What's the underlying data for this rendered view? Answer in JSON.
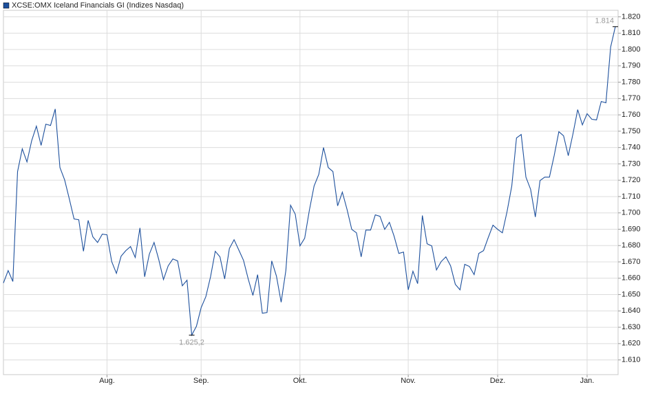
{
  "chart_data": {
    "type": "line",
    "series": [
      {
        "name": "XCSE:OMX Iceland Financials GI (Indizes Nasdaq)",
        "color": "#1c4f9c",
        "values": [
          1657.1,
          1664.7,
          1658.0,
          1725.3,
          1739.2,
          1731.2,
          1744.2,
          1753.1,
          1741.3,
          1754.3,
          1753.5,
          1763.6,
          1727.8,
          1720.2,
          1708.5,
          1696.3,
          1695.8,
          1676.5,
          1695.4,
          1685.3,
          1681.9,
          1687.0,
          1686.6,
          1670.2,
          1663.0,
          1673.5,
          1676.9,
          1679.4,
          1672.7,
          1690.8,
          1660.9,
          1674.8,
          1681.9,
          1671.4,
          1659.2,
          1667.6,
          1671.8,
          1670.6,
          1655.4,
          1658.8,
          1625.2,
          1630.6,
          1642.0,
          1648.7,
          1660.9,
          1676.5,
          1673.1,
          1659.6,
          1678.2,
          1683.6,
          1677.3,
          1671.0,
          1659.6,
          1649.5,
          1662.2,
          1638.6,
          1639.0,
          1670.6,
          1661.3,
          1645.3,
          1664.7,
          1704.7,
          1699.2,
          1679.8,
          1684.5,
          1701.7,
          1716.5,
          1723.6,
          1740.0,
          1727.8,
          1725.3,
          1704.3,
          1712.7,
          1702.1,
          1689.9,
          1687.8,
          1673.1,
          1689.5,
          1689.5,
          1698.8,
          1697.9,
          1689.9,
          1694.2,
          1685.7,
          1675.2,
          1676.0,
          1652.9,
          1664.3,
          1656.7,
          1698.4,
          1681.1,
          1679.8,
          1665.1,
          1670.2,
          1673.1,
          1667.6,
          1656.3,
          1652.9,
          1668.5,
          1667.2,
          1662.2,
          1675.2,
          1676.9,
          1684.9,
          1692.5,
          1689.9,
          1687.8,
          1700.9,
          1716.5,
          1745.9,
          1748.0,
          1721.9,
          1714.4,
          1697.5,
          1719.8,
          1721.9,
          1721.9,
          1735.0,
          1749.7,
          1747.2,
          1735.0,
          1748.4,
          1763.2,
          1753.9,
          1760.7,
          1757.3,
          1756.9,
          1768.2,
          1767.4,
          1801.5,
          1814.0
        ]
      }
    ],
    "categories": [
      null,
      null,
      null,
      null,
      null,
      null,
      null,
      null,
      null,
      null,
      null,
      null,
      null,
      null,
      null,
      null,
      null,
      null,
      null,
      null,
      null,
      null,
      "Aug.",
      null,
      null,
      null,
      null,
      null,
      null,
      null,
      null,
      null,
      null,
      null,
      null,
      null,
      null,
      null,
      null,
      null,
      null,
      null,
      "Sep.",
      null,
      null,
      null,
      null,
      null,
      null,
      null,
      null,
      null,
      null,
      null,
      null,
      null,
      null,
      null,
      null,
      null,
      null,
      null,
      null,
      "Okt.",
      null,
      null,
      null,
      null,
      null,
      null,
      null,
      null,
      null,
      null,
      null,
      null,
      null,
      null,
      null,
      null,
      null,
      null,
      null,
      null,
      null,
      null,
      "Nov.",
      null,
      null,
      null,
      null,
      null,
      null,
      null,
      null,
      null,
      null,
      null,
      null,
      null,
      null,
      null,
      null,
      null,
      null,
      "Dez.",
      null,
      null,
      null,
      null,
      null,
      null,
      null,
      null,
      null,
      null,
      null,
      null,
      null,
      null,
      null,
      null,
      null,
      null,
      "Jan.",
      null,
      null,
      null,
      null,
      null,
      null
    ],
    "ylim": [
      1601,
      1824
    ],
    "yticks": [
      {
        "value": 1610,
        "label": "1.610"
      },
      {
        "value": 1620,
        "label": "1.620"
      },
      {
        "value": 1630,
        "label": "1.630"
      },
      {
        "value": 1640,
        "label": "1.640"
      },
      {
        "value": 1650,
        "label": "1.650"
      },
      {
        "value": 1660,
        "label": "1.660"
      },
      {
        "value": 1670,
        "label": "1.670"
      },
      {
        "value": 1680,
        "label": "1.680"
      },
      {
        "value": 1690,
        "label": "1.690"
      },
      {
        "value": 1700,
        "label": "1.700"
      },
      {
        "value": 1710,
        "label": "1.710"
      },
      {
        "value": 1720,
        "label": "1.720"
      },
      {
        "value": 1730,
        "label": "1.730"
      },
      {
        "value": 1740,
        "label": "1.740"
      },
      {
        "value": 1750,
        "label": "1.750"
      },
      {
        "value": 1760,
        "label": "1.760"
      },
      {
        "value": 1770,
        "label": "1.770"
      },
      {
        "value": 1780,
        "label": "1.780"
      },
      {
        "value": 1790,
        "label": "1.790"
      },
      {
        "value": 1800,
        "label": "1.800"
      },
      {
        "value": 1810,
        "label": "1.810"
      },
      {
        "value": 1820,
        "label": "1.820"
      }
    ],
    "annotations": [
      {
        "text": "1.625,2",
        "value": 1625.2
      },
      {
        "text": "1.814",
        "value": 1814.0
      }
    ],
    "grid": true
  }
}
